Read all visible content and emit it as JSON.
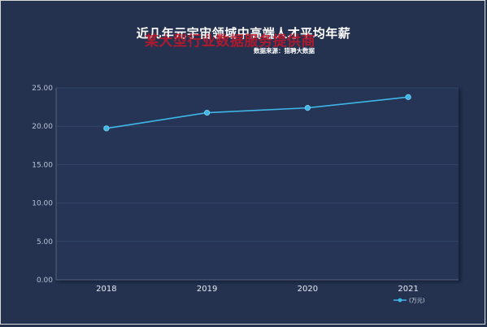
{
  "chart_data": {
    "type": "line",
    "title": "近几年元宇宙领域中高端人才平均年薪",
    "subtitle": "数据来源：猎聘大数据",
    "watermark": "某大型行业数据服务提供商",
    "categories": [
      "2018",
      "2019",
      "2020",
      "2021"
    ],
    "series": [
      {
        "name": "(万元)",
        "values": [
          19.72,
          21.76,
          22.39,
          23.8
        ],
        "color": "#3fb6e8"
      }
    ],
    "ylim": [
      0,
      25
    ],
    "yticks": [
      "0.00",
      "5.00",
      "10.00",
      "15.00",
      "20.00",
      "25.00"
    ],
    "grid": true,
    "legend_position": "bottom-right"
  }
}
